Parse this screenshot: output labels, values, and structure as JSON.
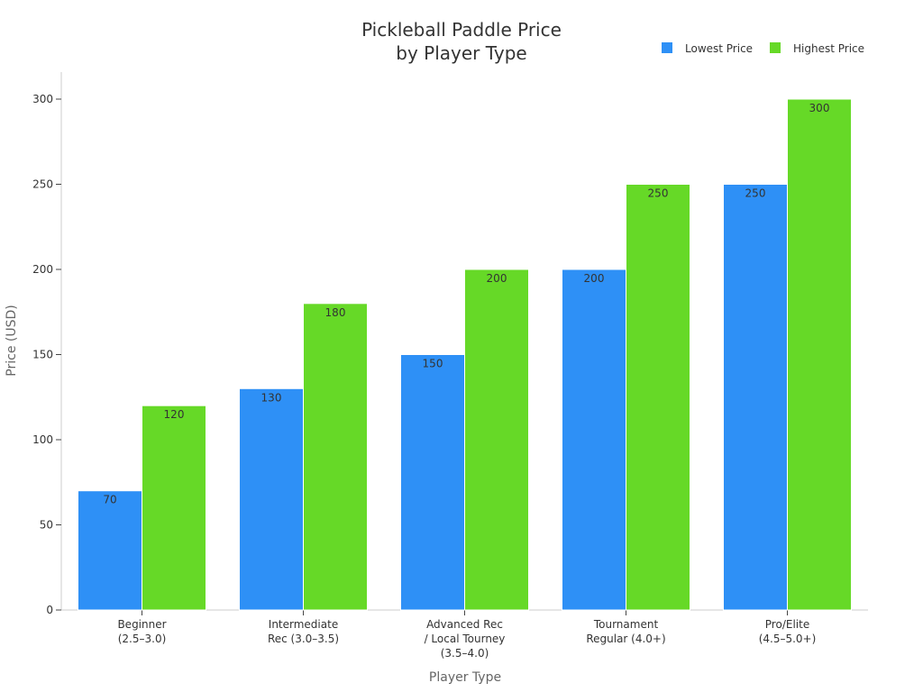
{
  "chart_data": {
    "type": "bar",
    "title_lines": [
      "Pickleball Paddle Price",
      "by Player Type"
    ],
    "xlabel": "Player Type",
    "ylabel": "Price (USD)",
    "categories": [
      [
        "Beginner",
        "(2.5–3.0)"
      ],
      [
        "Intermediate",
        "Rec (3.0–3.5)"
      ],
      [
        "Advanced Rec",
        "/ Local Tourney",
        "(3.5–4.0)"
      ],
      [
        "Tournament",
        "Regular (4.0+)"
      ],
      [
        "Pro/Elite",
        "(4.5–5.0+)"
      ]
    ],
    "series": [
      {
        "name": "Lowest Price",
        "color": "#2e90f6",
        "values": [
          70,
          130,
          150,
          200,
          250
        ]
      },
      {
        "name": "Highest Price",
        "color": "#66d927",
        "values": [
          120,
          180,
          200,
          250,
          300
        ]
      }
    ],
    "ylim": [
      0,
      300
    ],
    "yticks": [
      0,
      50,
      100,
      150,
      200,
      250,
      300
    ],
    "grid": false,
    "legend_position": "top-right",
    "data_labels": true
  }
}
